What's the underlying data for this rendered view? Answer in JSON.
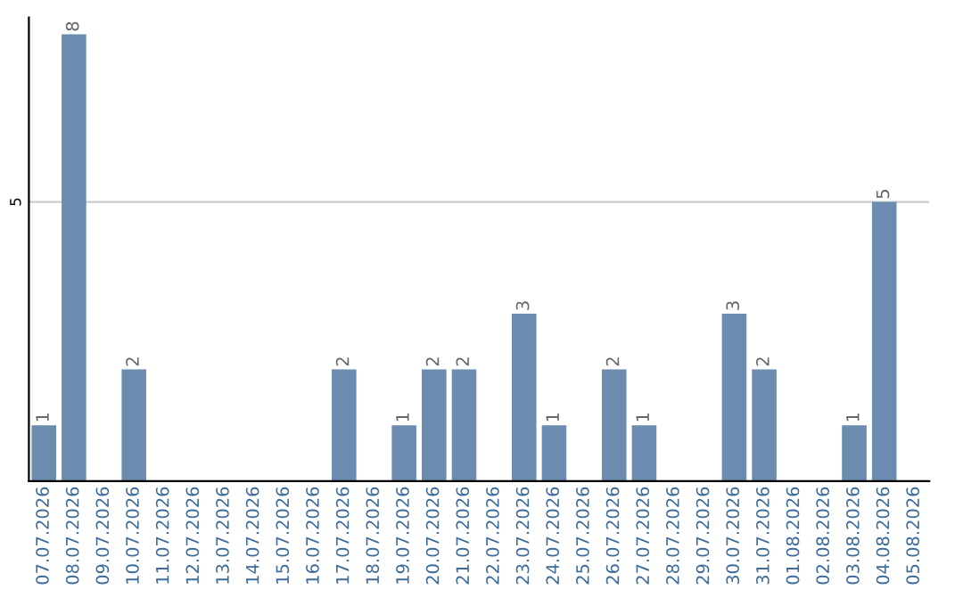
{
  "chart_data": {
    "type": "bar",
    "categories": [
      "07.07.2026",
      "08.07.2026",
      "09.07.2026",
      "10.07.2026",
      "11.07.2026",
      "12.07.2026",
      "13.07.2026",
      "14.07.2026",
      "15.07.2026",
      "16.07.2026",
      "17.07.2026",
      "18.07.2026",
      "19.07.2026",
      "20.07.2026",
      "21.07.2026",
      "22.07.2026",
      "23.07.2026",
      "24.07.2026",
      "25.07.2026",
      "26.07.2026",
      "27.07.2026",
      "28.07.2026",
      "29.07.2026",
      "30.07.2026",
      "31.07.2026",
      "01.08.2026",
      "02.08.2026",
      "03.08.2026",
      "04.08.2026",
      "05.08.2026"
    ],
    "values": [
      1,
      8,
      0,
      2,
      0,
      0,
      0,
      0,
      0,
      0,
      2,
      0,
      1,
      2,
      2,
      0,
      3,
      1,
      0,
      2,
      1,
      0,
      0,
      3,
      2,
      0,
      0,
      1,
      5,
      0
    ],
    "value_labels": [
      "1",
      "8",
      null,
      "2",
      null,
      null,
      null,
      null,
      null,
      null,
      "2",
      null,
      "1",
      "2",
      "2",
      null,
      "3",
      "1",
      null,
      "2",
      "1",
      null,
      null,
      "3",
      "2",
      null,
      null,
      "1",
      "5",
      null
    ],
    "color": "#6b8caf",
    "ylim": [
      0,
      8.3
    ],
    "yticks": [
      5
    ],
    "grid": "y",
    "legend": false
  }
}
